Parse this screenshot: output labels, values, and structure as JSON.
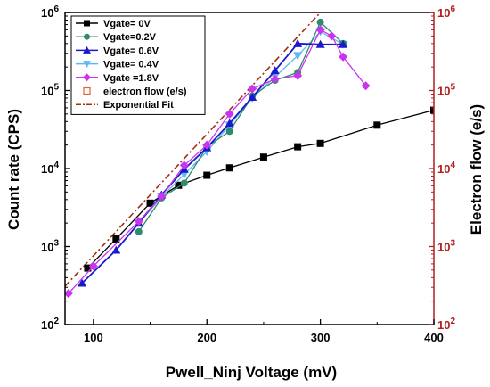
{
  "chart_data": {
    "type": "line",
    "title": "",
    "xlabel": "Pwell_Ninj Voltage (mV)",
    "ylabel": "Count rate (CPS)",
    "y2label": "Electron flow (e/s)",
    "xlim": [
      75,
      400
    ],
    "ylim": [
      100,
      1000000
    ],
    "y2lim": [
      100,
      1000000
    ],
    "yscale": "log",
    "y2scale": "log",
    "grid": false,
    "legend_position": "top-left",
    "x_ticks": [
      {
        "value": 100,
        "label": "100"
      },
      {
        "value": 200,
        "label": "200"
      },
      {
        "value": 300,
        "label": "300"
      },
      {
        "value": 400,
        "label": "400"
      }
    ],
    "y_ticks": [
      {
        "value": 100,
        "base": "10",
        "exp": "2"
      },
      {
        "value": 1000,
        "base": "10",
        "exp": "3"
      },
      {
        "value": 10000,
        "base": "10",
        "exp": "4"
      },
      {
        "value": 100000,
        "base": "10",
        "exp": "5"
      },
      {
        "value": 1000000,
        "base": "10",
        "exp": "6"
      }
    ],
    "y2_ticks": [
      {
        "value": 100,
        "base": "10",
        "exp": "2"
      },
      {
        "value": 1000,
        "base": "10",
        "exp": "3"
      },
      {
        "value": 10000,
        "base": "10",
        "exp": "4"
      },
      {
        "value": 100000,
        "base": "10",
        "exp": "5"
      },
      {
        "value": 1000000,
        "base": "10",
        "exp": "6"
      }
    ],
    "series": [
      {
        "name": "Vgate= 0V",
        "color": "#000000",
        "marker": "square",
        "x": [
          95,
          120,
          150,
          175,
          200,
          220,
          250,
          280,
          300,
          350,
          400
        ],
        "y": [
          530,
          1250,
          3600,
          6100,
          8200,
          10200,
          14000,
          19000,
          21000,
          36000,
          56000
        ]
      },
      {
        "name": "Vgate=0.2V",
        "color": "#2e8b6e",
        "marker": "circle",
        "x": [
          140,
          160,
          180,
          200,
          220,
          240,
          260,
          280,
          300,
          320
        ],
        "y": [
          1550,
          4200,
          6500,
          19000,
          30000,
          85000,
          135000,
          170000,
          750000,
          400000
        ]
      },
      {
        "name": "Vgate= 0.6V",
        "color": "#1a1acc",
        "marker": "triangle",
        "x": [
          90,
          120,
          140,
          160,
          180,
          200,
          220,
          240,
          260,
          280,
          300,
          320
        ],
        "y": [
          340,
          900,
          2000,
          4600,
          9800,
          18500,
          38000,
          82000,
          180000,
          400000,
          390000,
          390000
        ]
      },
      {
        "name": "Vgate= 0.4V",
        "color": "#63b8ee",
        "marker": "triangle-down",
        "x": [
          140,
          160,
          180,
          200,
          220,
          240,
          260,
          280,
          300,
          320
        ],
        "y": [
          2000,
          4300,
          8400,
          16500,
          36000,
          80000,
          150000,
          280000,
          570000,
          390000
        ]
      },
      {
        "name": "Vgate =1.8V",
        "color": "#cc33ee",
        "marker": "diamond",
        "x": [
          78,
          100,
          140,
          160,
          180,
          200,
          220,
          240,
          260,
          280,
          300,
          310,
          320,
          340
        ],
        "y": [
          250,
          560,
          2100,
          4400,
          11000,
          20000,
          50000,
          105000,
          140000,
          155000,
          600000,
          500000,
          270000,
          115000
        ]
      },
      {
        "name": "electron flow (e/s)",
        "color": "#e0603a",
        "marker": "open-square",
        "x": [],
        "y": []
      },
      {
        "name": "Exponential Fit",
        "color": "#a03010",
        "marker": "none",
        "dash": "dashdot",
        "x": [
          75,
          300
        ],
        "y": [
          310,
          1000000
        ]
      }
    ]
  }
}
